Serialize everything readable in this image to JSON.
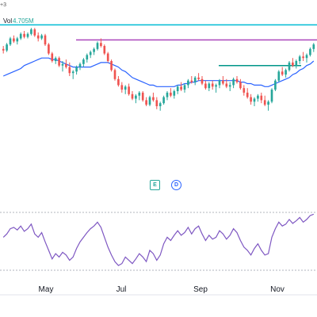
{
  "header": {
    "corner_text": "+3",
    "volume_label": "Vol",
    "volume_value": "4.705M"
  },
  "badges": {
    "earnings": "E",
    "dividend": "D"
  },
  "x_axis": {
    "months": [
      "May",
      "Jul",
      "Sep",
      "Nov"
    ]
  },
  "colors": {
    "up": "#26a69a",
    "down": "#ef5350",
    "ma": "#2962ff",
    "level_cyan": "#00bcd4",
    "level_purple": "#ab47bc",
    "level_teal": "#009688",
    "oscillator": "#7e57c2",
    "grid": "#e0e3eb"
  },
  "chart_data": {
    "type": "candlestick",
    "price_axis": {
      "min": 0,
      "max": 100
    },
    "candle_ohlc": [
      [
        78,
        80,
        75,
        77
      ],
      [
        77,
        82,
        76,
        81
      ],
      [
        81,
        86,
        80,
        85
      ],
      [
        85,
        87,
        82,
        83
      ],
      [
        83,
        86,
        81,
        85
      ],
      [
        85,
        89,
        84,
        88
      ],
      [
        88,
        90,
        85,
        86
      ],
      [
        86,
        89,
        85,
        88
      ],
      [
        88,
        92,
        87,
        91
      ],
      [
        91,
        92,
        86,
        87
      ],
      [
        87,
        89,
        83,
        85
      ],
      [
        85,
        88,
        84,
        87
      ],
      [
        87,
        88,
        80,
        81
      ],
      [
        81,
        82,
        74,
        75
      ],
      [
        75,
        76,
        69,
        70
      ],
      [
        70,
        73,
        68,
        72
      ],
      [
        72,
        73,
        66,
        67
      ],
      [
        67,
        70,
        63,
        68
      ],
      [
        68,
        71,
        65,
        66
      ],
      [
        66,
        69,
        60,
        62
      ],
      [
        62,
        64,
        58,
        63
      ],
      [
        63,
        67,
        61,
        66
      ],
      [
        66,
        69,
        64,
        68
      ],
      [
        68,
        72,
        66,
        71
      ],
      [
        71,
        75,
        69,
        74
      ],
      [
        74,
        77,
        72,
        76
      ],
      [
        76,
        79,
        74,
        78
      ],
      [
        78,
        83,
        77,
        82
      ],
      [
        82,
        85,
        79,
        80
      ],
      [
        80,
        81,
        74,
        75
      ],
      [
        75,
        76,
        69,
        70
      ],
      [
        70,
        71,
        63,
        64
      ],
      [
        64,
        65,
        57,
        58
      ],
      [
        58,
        60,
        53,
        54
      ],
      [
        54,
        56,
        49,
        51
      ],
      [
        51,
        54,
        48,
        53
      ],
      [
        53,
        55,
        47,
        48
      ],
      [
        48,
        50,
        44,
        45
      ],
      [
        45,
        48,
        42,
        47
      ],
      [
        47,
        50,
        44,
        49
      ],
      [
        49,
        50,
        43,
        44
      ],
      [
        44,
        46,
        40,
        41
      ],
      [
        41,
        47,
        40,
        46
      ],
      [
        46,
        49,
        43,
        44
      ],
      [
        44,
        46,
        38,
        40
      ],
      [
        40,
        43,
        37,
        42
      ],
      [
        42,
        47,
        41,
        46
      ],
      [
        46,
        50,
        44,
        49
      ],
      [
        49,
        52,
        46,
        47
      ],
      [
        47,
        51,
        45,
        50
      ],
      [
        50,
        54,
        48,
        53
      ],
      [
        53,
        56,
        50,
        51
      ],
      [
        51,
        55,
        49,
        54
      ],
      [
        54,
        58,
        52,
        57
      ],
      [
        57,
        60,
        55,
        56
      ],
      [
        56,
        60,
        54,
        59
      ],
      [
        59,
        62,
        57,
        58
      ],
      [
        58,
        60,
        54,
        55
      ],
      [
        55,
        57,
        51,
        52
      ],
      [
        52,
        56,
        50,
        55
      ],
      [
        55,
        57,
        51,
        53
      ],
      [
        53,
        55,
        49,
        54
      ],
      [
        54,
        58,
        52,
        57
      ],
      [
        57,
        60,
        54,
        55
      ],
      [
        55,
        58,
        52,
        53
      ],
      [
        53,
        56,
        50,
        54
      ],
      [
        54,
        59,
        52,
        58
      ],
      [
        58,
        60,
        55,
        56
      ],
      [
        56,
        58,
        51,
        52
      ],
      [
        52,
        54,
        47,
        49
      ],
      [
        49,
        52,
        45,
        46
      ],
      [
        46,
        48,
        41,
        43
      ],
      [
        43,
        46,
        40,
        45
      ],
      [
        45,
        48,
        43,
        47
      ],
      [
        47,
        49,
        42,
        44
      ],
      [
        44,
        47,
        40,
        41
      ],
      [
        41,
        44,
        37,
        43
      ],
      [
        43,
        52,
        42,
        51
      ],
      [
        51,
        58,
        50,
        57
      ],
      [
        57,
        64,
        56,
        63
      ],
      [
        63,
        66,
        60,
        61
      ],
      [
        61,
        65,
        59,
        64
      ],
      [
        64,
        70,
        63,
        69
      ],
      [
        69,
        72,
        66,
        67
      ],
      [
        67,
        71,
        65,
        70
      ],
      [
        70,
        74,
        68,
        73
      ],
      [
        73,
        76,
        70,
        72
      ],
      [
        72,
        75,
        69,
        74
      ],
      [
        74,
        79,
        73,
        78
      ],
      [
        78,
        82,
        76,
        81
      ]
    ],
    "moving_average": [
      60,
      61,
      62,
      63,
      64,
      65,
      67,
      68,
      69,
      70,
      71,
      72,
      72,
      72,
      71,
      71,
      70,
      69,
      68,
      67,
      66,
      66,
      66,
      66,
      66,
      66,
      67,
      68,
      69,
      69,
      69,
      68,
      67,
      66,
      64,
      63,
      61,
      59,
      58,
      57,
      56,
      55,
      54,
      54,
      53,
      53,
      53,
      53,
      53,
      53,
      54,
      54,
      55,
      55,
      56,
      56,
      57,
      57,
      57,
      57,
      57,
      57,
      57,
      57,
      57,
      57,
      57,
      57,
      56,
      56,
      55,
      55,
      54,
      54,
      54,
      53,
      53,
      54,
      55,
      56,
      57,
      58,
      59,
      61,
      62,
      64,
      65,
      67,
      68,
      70
    ],
    "horizontal_levels": [
      {
        "price": 94,
        "from": 0.0,
        "to": 1.0,
        "color": "#00bcd4"
      },
      {
        "price": 84,
        "from": 0.24,
        "to": 1.0,
        "color": "#ab47bc"
      },
      {
        "price": 67,
        "from": 0.69,
        "to": 0.95,
        "color": "#009688"
      }
    ],
    "oscillator": {
      "range": [
        0,
        100
      ],
      "values": [
        55,
        60,
        68,
        70,
        66,
        72,
        64,
        68,
        75,
        60,
        55,
        62,
        48,
        35,
        22,
        30,
        25,
        32,
        28,
        20,
        25,
        38,
        48,
        55,
        62,
        68,
        72,
        78,
        70,
        55,
        40,
        28,
        18,
        12,
        15,
        25,
        20,
        15,
        22,
        30,
        25,
        18,
        35,
        30,
        20,
        28,
        45,
        55,
        50,
        58,
        65,
        58,
        62,
        70,
        60,
        68,
        72,
        60,
        50,
        58,
        52,
        55,
        65,
        60,
        52,
        58,
        68,
        62,
        50,
        40,
        35,
        28,
        38,
        45,
        35,
        28,
        30,
        55,
        68,
        78,
        72,
        75,
        82,
        76,
        80,
        85,
        78,
        82,
        88,
        90
      ]
    }
  }
}
